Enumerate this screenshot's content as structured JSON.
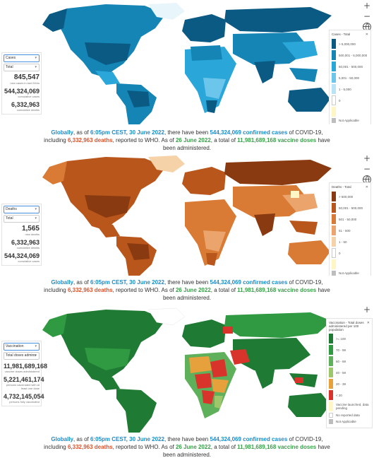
{
  "caption": {
    "p1": "Globally",
    "p2": ", as of ",
    "time": "6:05pm CEST, 30 June 2022",
    "p3": ", there have been ",
    "cases": "544,324,069 confirmed cases",
    "p4": " of COVID-19,",
    "p5": "including ",
    "deaths": "6,332,963 deaths",
    "p6": ", reported to WHO. As of ",
    "vdate": "26 June 2022",
    "p7": ", a total of ",
    "doses": "11,981,689,168 vaccine doses",
    "p8": " have",
    "p9": "been administered."
  },
  "controls": {
    "zoom_in": "+",
    "zoom_out": "−"
  },
  "panels": [
    {
      "metric": "Cases",
      "period": "Total",
      "stats": [
        {
          "value": "845,547",
          "label": "new cases in last 24hrs"
        },
        {
          "value": "544,324,069",
          "label": "cumulative cases"
        },
        {
          "value": "6,332,963",
          "label": "cumulative deaths"
        }
      ],
      "legend": {
        "title": "Cases - Total",
        "close": "✕",
        "items": [
          {
            "label": "> 5,000,000",
            "color": "#0a5a84"
          },
          {
            "label": "500,001 - 5,000,000",
            "color": "#1485b5"
          },
          {
            "label": "50,001 - 500,000",
            "color": "#2aa6d9"
          },
          {
            "label": "5,001 - 50,000",
            "color": "#6cc6ec"
          },
          {
            "label": "1 - 5,000",
            "color": "#b9e3f6"
          },
          {
            "label": "0",
            "color": "#ffffff"
          },
          {
            "label": "",
            "color": "#fff6c5"
          },
          {
            "label": "Not Applicable",
            "color": "#bdbdbd"
          }
        ]
      }
    },
    {
      "metric": "Deaths",
      "period": "Total",
      "stats": [
        {
          "value": "1,565",
          "label": "new deaths"
        },
        {
          "value": "6,332,963",
          "label": "cumulative deaths"
        },
        {
          "value": "544,324,069",
          "label": "cumulative cases"
        }
      ],
      "legend": {
        "title": "Deaths - Total",
        "close": "✕",
        "items": [
          {
            "label": "> 500,000",
            "color": "#8a3a10"
          },
          {
            "label": "50,001 - 500,000",
            "color": "#b8561b"
          },
          {
            "label": "501 - 50,000",
            "color": "#d97a35"
          },
          {
            "label": "51 - 500",
            "color": "#eba46c"
          },
          {
            "label": "1 - 50",
            "color": "#f6d2a8"
          },
          {
            "label": "0",
            "color": "#ffffff"
          },
          {
            "label": "",
            "color": "#fff6c5"
          },
          {
            "label": "Not Applicable",
            "color": "#bdbdbd"
          }
        ]
      }
    },
    {
      "metric": "Vaccination",
      "period": "Total doses admins",
      "stats": [
        {
          "value": "11,981,689,168",
          "label": "vaccine doses administered"
        },
        {
          "value": "5,221,461,174",
          "label": "persons vaccinated with at least one dose"
        },
        {
          "value": "4,732,145,054",
          "label": "persons fully vaccinated"
        }
      ],
      "legend": {
        "title": "Vaccination - Total doses administered per 100 population",
        "close": "✕",
        "items": [
          {
            "label": ">= 100",
            "color": "#1f7a34"
          },
          {
            "label": "70 - 99",
            "color": "#2f9a41"
          },
          {
            "label": "60 - 69",
            "color": "#5fb05a"
          },
          {
            "label": "40 - 59",
            "color": "#9ec66a"
          },
          {
            "label": "20 - 39",
            "color": "#e6a03c"
          },
          {
            "label": "< 20",
            "color": "#d8342c"
          },
          {
            "label": "Vaccine launched, data pending",
            "color": "#fff6c5"
          },
          {
            "label": "No reported data",
            "color": "#ffffff"
          },
          {
            "label": "Not Applicable",
            "color": "#bdbdbd"
          }
        ]
      }
    }
  ]
}
